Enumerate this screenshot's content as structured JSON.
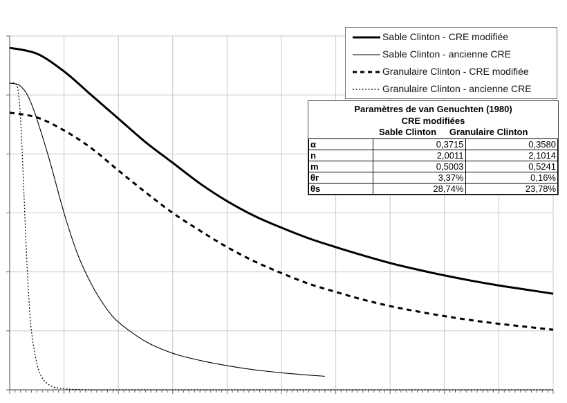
{
  "chart_data": {
    "type": "line",
    "title": "",
    "xlabel": "",
    "ylabel": "",
    "xlim": [
      0,
      10
    ],
    "ylim": [
      0,
      6
    ],
    "grid": true,
    "series": [
      {
        "name": "Sable Clinton - CRE modifiée",
        "style": "thick-solid",
        "x": [
          0,
          0.5,
          1,
          1.5,
          2,
          2.5,
          3,
          3.5,
          4,
          4.5,
          5,
          5.5,
          6,
          6.5,
          7,
          7.5,
          8,
          8.5,
          9,
          9.5,
          10
        ],
        "y": [
          5.8,
          5.7,
          5.4,
          5.0,
          4.6,
          4.2,
          3.85,
          3.5,
          3.2,
          2.95,
          2.75,
          2.57,
          2.42,
          2.28,
          2.15,
          2.04,
          1.94,
          1.85,
          1.77,
          1.7,
          1.63
        ]
      },
      {
        "name": "Sable Clinton - ancienne CRE",
        "style": "thin-solid",
        "x": [
          0,
          0.2,
          0.4,
          0.7,
          1,
          1.25,
          1.5,
          1.75,
          2,
          2.5,
          3,
          3.5,
          4,
          4.5,
          5,
          5.5,
          5.8
        ],
        "y": [
          5.2,
          5.15,
          4.85,
          4.0,
          3.0,
          2.3,
          1.8,
          1.42,
          1.15,
          0.82,
          0.62,
          0.5,
          0.41,
          0.34,
          0.29,
          0.25,
          0.23
        ]
      },
      {
        "name": "Granulaire Clinton - CRE modifiée",
        "style": "thick-dashed",
        "x": [
          0,
          0.5,
          1,
          1.5,
          2,
          2.5,
          3,
          3.5,
          4,
          4.5,
          5,
          5.5,
          6,
          6.5,
          7,
          7.5,
          8,
          8.5,
          9,
          9.5,
          10
        ],
        "y": [
          4.7,
          4.62,
          4.4,
          4.1,
          3.72,
          3.35,
          3.0,
          2.7,
          2.42,
          2.18,
          1.98,
          1.8,
          1.66,
          1.53,
          1.42,
          1.33,
          1.25,
          1.18,
          1.12,
          1.07,
          1.02
        ]
      },
      {
        "name": "Granulaire Clinton - ancienne CRE",
        "style": "thin-dotted",
        "x": [
          0,
          0.08,
          0.15,
          0.2,
          0.25,
          0.3,
          0.35,
          0.4,
          0.5,
          0.6,
          0.75,
          0.9,
          1.1,
          1.5,
          2,
          4,
          6,
          8,
          10
        ],
        "y": [
          5.2,
          5.2,
          5.1,
          4.6,
          3.6,
          2.5,
          1.6,
          1.0,
          0.45,
          0.2,
          0.07,
          0.03,
          0.01,
          0.0,
          0.0,
          0.0,
          0.0,
          0.0,
          0.0
        ]
      }
    ],
    "legend_position": "top-right"
  },
  "legend": [
    {
      "label": "Sable Clinton - CRE modifiée",
      "style": "thick-solid"
    },
    {
      "label": "Sable Clinton - ancienne CRE",
      "style": "thin-solid"
    },
    {
      "label": "Granulaire Clinton - CRE modifiée",
      "style": "thick-dashed"
    },
    {
      "label": "Granulaire Clinton - ancienne CRE",
      "style": "thin-dotted"
    }
  ],
  "params_table": {
    "title_line1": "Paramètres de van Genuchten (1980)",
    "title_line2": "CRE modifiées",
    "col_sable": "Sable Clinton",
    "col_granulaire": "Granulaire Clinton",
    "rows": [
      {
        "name": "α",
        "sable": "0,3715",
        "granulaire": "0,3580"
      },
      {
        "name": "n",
        "sable": "2,0011",
        "granulaire": "2,1014"
      },
      {
        "name": "m",
        "sable": "0,5003",
        "granulaire": "0,5241"
      },
      {
        "name": "θr",
        "sable": "3,37%",
        "granulaire": "0,16%"
      },
      {
        "name": "θs",
        "sable": "28,74%",
        "granulaire": "23,78%"
      }
    ]
  },
  "colors": {
    "line": "#000000",
    "grid": "#c8c8c8",
    "axis": "#666666",
    "background": "#ffffff"
  }
}
